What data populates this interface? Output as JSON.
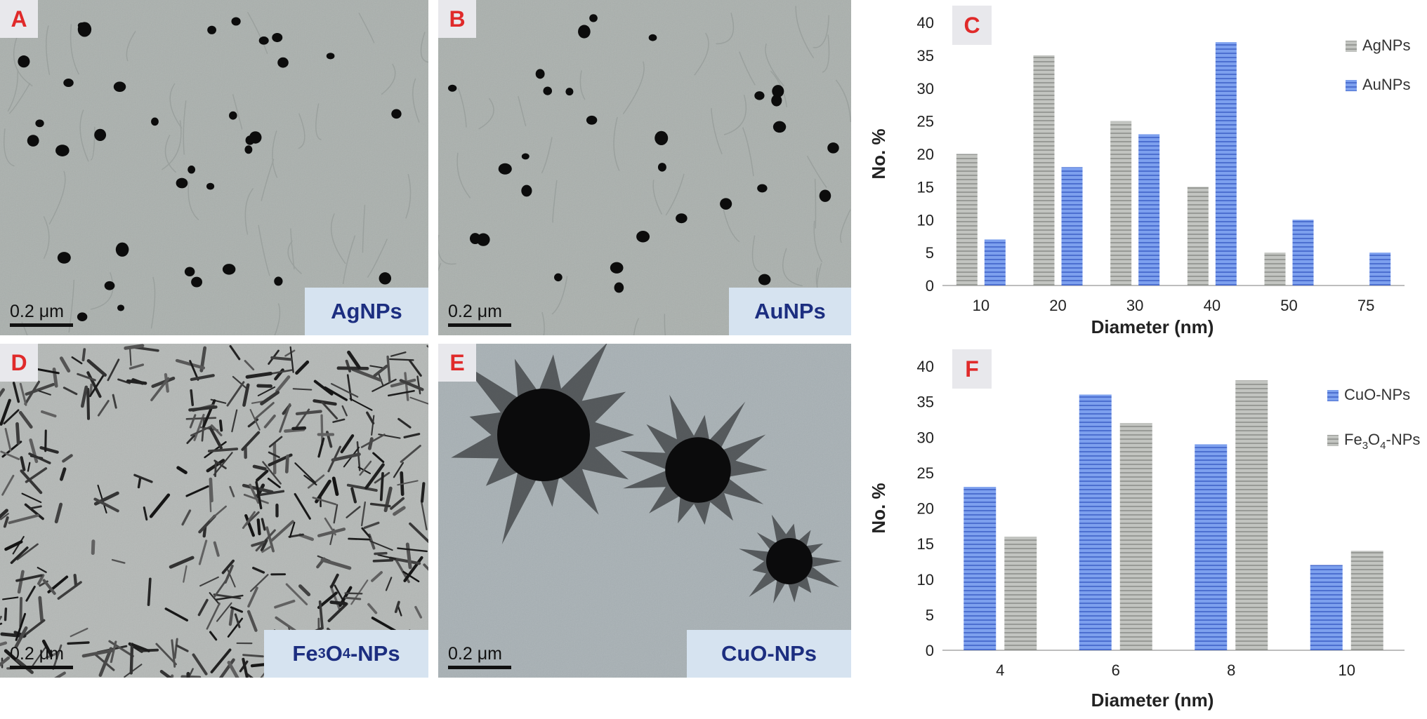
{
  "panels": {
    "A": {
      "letter": "A",
      "label": "AgNPs",
      "scale": "0.2 μm"
    },
    "B": {
      "letter": "B",
      "label": "AuNPs",
      "scale": "0.2 μm"
    },
    "D": {
      "letter": "D",
      "label_main": "Fe",
      "label_sub1": "3",
      "label_mid": "O",
      "label_sub2": "4",
      "label_end": "-NPs",
      "scale": "0.2 μm"
    },
    "E": {
      "letter": "E",
      "label": "CuO-NPs",
      "scale": "0.2 μm"
    }
  },
  "colors": {
    "gray_bar": "#b4b6b2",
    "gray_stripe": "#8e908c",
    "blue_bar": "#6c93ea",
    "blue_stripe": "#3f63c8",
    "axis": "#bdbdbd",
    "panel_letter": "#e02a2a",
    "np_label": "#1c2e80"
  },
  "chart_data": [
    {
      "panel": "C",
      "type": "bar",
      "categories": [
        "10",
        "20",
        "30",
        "40",
        "50",
        "75"
      ],
      "series": [
        {
          "name": "AgNPs",
          "values": [
            20,
            35,
            25,
            15,
            5,
            0
          ],
          "color": "gray"
        },
        {
          "name": "AuNPs",
          "values": [
            7,
            18,
            23,
            37,
            10,
            5
          ],
          "color": "blue"
        }
      ],
      "xlabel": "Diameter (nm)",
      "ylabel": "No. %",
      "ylim": [
        0,
        40
      ],
      "yticks": [
        0,
        5,
        10,
        15,
        20,
        25,
        30,
        35,
        40
      ],
      "legend": "top-right",
      "grid": false
    },
    {
      "panel": "F",
      "type": "bar",
      "categories": [
        "4",
        "6",
        "8",
        "10"
      ],
      "series": [
        {
          "name": "CuO-NPs",
          "values": [
            23,
            36,
            29,
            12
          ],
          "color": "blue"
        },
        {
          "name": "Fe3O4-NPs",
          "values": [
            16,
            32,
            38,
            14
          ],
          "color": "gray"
        }
      ],
      "xlabel": "Diameter (nm)",
      "ylabel": "No. %",
      "ylim": [
        0,
        40
      ],
      "yticks": [
        0,
        5,
        10,
        15,
        20,
        25,
        30,
        35,
        40
      ],
      "legend": "top-right",
      "grid": false
    }
  ],
  "legend_F_fe": {
    "main": "Fe",
    "sub1": "3",
    "mid": "O",
    "sub2": "4",
    "end": "-NPs"
  }
}
